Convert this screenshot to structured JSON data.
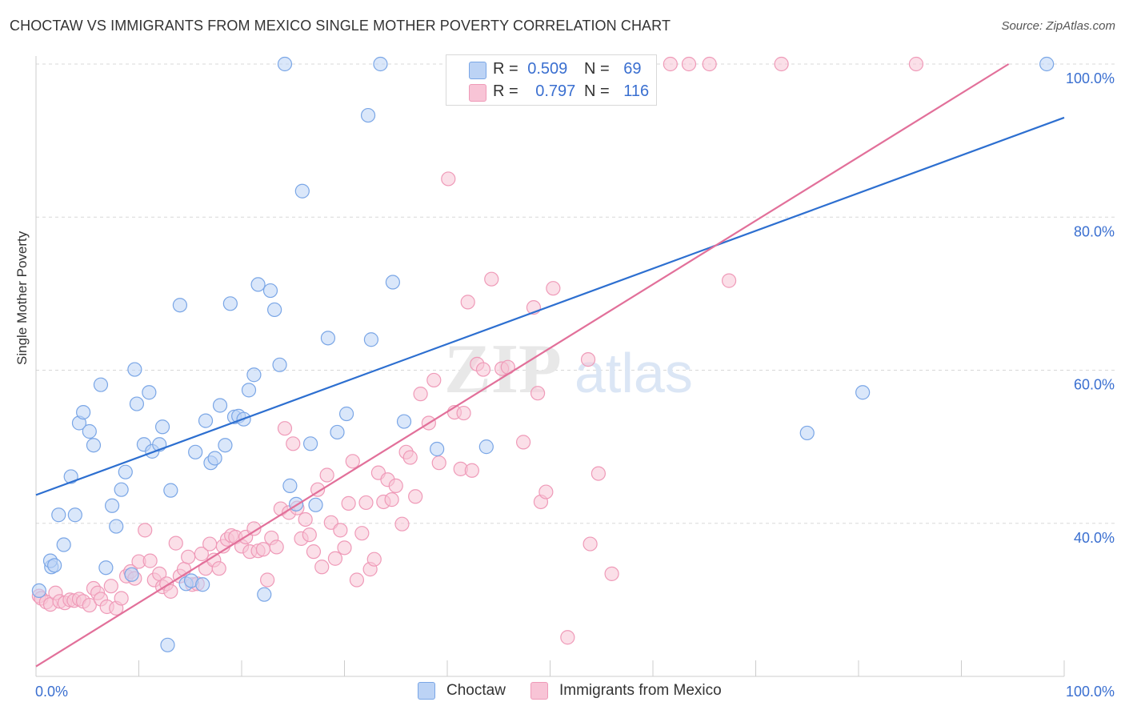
{
  "title": "CHOCTAW VS IMMIGRANTS FROM MEXICO SINGLE MOTHER POVERTY CORRELATION CHART",
  "source": "Source: ZipAtlas.com",
  "watermark": {
    "zip": "ZIP",
    "atlas": "atlas"
  },
  "legend": {
    "r_label": "R =",
    "n_label": "N =",
    "series": [
      {
        "name": "Choctaw",
        "r": "0.509",
        "n": "69",
        "color": "#7aa6e6",
        "fill": "#bcd3f5",
        "line": "#2d6fd0"
      },
      {
        "name": "Immigrants from Mexico",
        "r": "0.797",
        "n": "116",
        "color": "#ef9ab8",
        "fill": "#f8c4d6",
        "line": "#e2709a"
      }
    ]
  },
  "chart_data": {
    "type": "scatter",
    "title": "CHOCTAW VS IMMIGRANTS FROM MEXICO SINGLE MOTHER POVERTY CORRELATION CHART",
    "xlabel": "",
    "ylabel": "Single Mother Poverty",
    "xlim": [
      0,
      100
    ],
    "ylim": [
      20,
      100
    ],
    "x_tick_labels": [
      "0.0%",
      "100.0%"
    ],
    "y_ticks": [
      40,
      60,
      80,
      100
    ],
    "y_tick_labels": [
      "40.0%",
      "60.0%",
      "80.0%",
      "100.0%"
    ],
    "grid": "horizontal dashed",
    "legend_position": "top-center",
    "series": [
      {
        "name": "Choctaw",
        "trendline": {
          "x0": 0,
          "y0": 43.7,
          "x1": 100,
          "y1": 93.0
        },
        "points": [
          [
            0.3,
            31.2
          ],
          [
            1.5,
            34.3
          ],
          [
            1.4,
            35.1
          ],
          [
            1.8,
            34.5
          ],
          [
            2.2,
            41.1
          ],
          [
            2.7,
            37.2
          ],
          [
            3.4,
            46.1
          ],
          [
            3.8,
            41.1
          ],
          [
            4.2,
            53.1
          ],
          [
            4.6,
            54.5
          ],
          [
            5.2,
            52.0
          ],
          [
            5.6,
            50.2
          ],
          [
            6.3,
            58.1
          ],
          [
            6.8,
            34.2
          ],
          [
            7.4,
            42.3
          ],
          [
            7.8,
            39.6
          ],
          [
            8.3,
            44.4
          ],
          [
            8.7,
            46.7
          ],
          [
            9.3,
            33.3
          ],
          [
            9.6,
            60.1
          ],
          [
            9.8,
            55.6
          ],
          [
            10.5,
            50.3
          ],
          [
            11.0,
            57.1
          ],
          [
            11.3,
            49.4
          ],
          [
            12.0,
            50.3
          ],
          [
            12.3,
            52.6
          ],
          [
            12.8,
            24.1
          ],
          [
            13.1,
            44.3
          ],
          [
            14.0,
            68.5
          ],
          [
            14.6,
            32.1
          ],
          [
            15.1,
            32.5
          ],
          [
            15.5,
            49.3
          ],
          [
            16.2,
            32.0
          ],
          [
            16.5,
            53.4
          ],
          [
            17.0,
            47.9
          ],
          [
            17.4,
            48.5
          ],
          [
            17.9,
            55.4
          ],
          [
            18.4,
            50.2
          ],
          [
            18.9,
            68.7
          ],
          [
            19.3,
            53.9
          ],
          [
            19.7,
            54.0
          ],
          [
            20.2,
            53.6
          ],
          [
            20.7,
            57.4
          ],
          [
            21.2,
            59.4
          ],
          [
            21.6,
            71.2
          ],
          [
            22.2,
            30.7
          ],
          [
            22.8,
            70.4
          ],
          [
            23.2,
            67.9
          ],
          [
            23.7,
            60.7
          ],
          [
            24.2,
            100
          ],
          [
            24.7,
            44.9
          ],
          [
            25.3,
            42.5
          ],
          [
            25.9,
            83.4
          ],
          [
            26.7,
            50.4
          ],
          [
            27.2,
            42.4
          ],
          [
            28.4,
            64.2
          ],
          [
            29.3,
            51.9
          ],
          [
            30.2,
            54.3
          ],
          [
            32.3,
            93.3
          ],
          [
            32.6,
            64.0
          ],
          [
            33.5,
            100
          ],
          [
            34.7,
            71.5
          ],
          [
            35.8,
            53.3
          ],
          [
            39.0,
            49.7
          ],
          [
            43.8,
            50.0
          ],
          [
            46.1,
            100
          ],
          [
            75.0,
            51.8
          ],
          [
            80.4,
            57.1
          ],
          [
            98.3,
            100
          ]
        ]
      },
      {
        "name": "Immigrants from Mexico",
        "trendline": {
          "x0": 0,
          "y0": 21.3,
          "x1": 94.6,
          "y1": 100
        },
        "points": [
          [
            0.3,
            30.5
          ],
          [
            0.5,
            30.2
          ],
          [
            1.0,
            29.7
          ],
          [
            1.4,
            29.4
          ],
          [
            1.9,
            30.9
          ],
          [
            2.3,
            29.8
          ],
          [
            2.8,
            29.6
          ],
          [
            3.3,
            30.0
          ],
          [
            3.7,
            29.9
          ],
          [
            4.2,
            30.1
          ],
          [
            4.6,
            29.8
          ],
          [
            5.2,
            29.3
          ],
          [
            5.6,
            31.5
          ],
          [
            6.0,
            30.9
          ],
          [
            6.3,
            30.1
          ],
          [
            6.9,
            29.1
          ],
          [
            7.3,
            31.8
          ],
          [
            7.8,
            28.9
          ],
          [
            8.3,
            30.2
          ],
          [
            8.8,
            33.1
          ],
          [
            9.2,
            33.7
          ],
          [
            9.6,
            32.8
          ],
          [
            10.0,
            35.0
          ],
          [
            10.6,
            39.1
          ],
          [
            11.1,
            35.1
          ],
          [
            11.5,
            32.6
          ],
          [
            12.0,
            33.4
          ],
          [
            12.3,
            31.7
          ],
          [
            12.7,
            32.1
          ],
          [
            13.1,
            31.1
          ],
          [
            13.6,
            37.4
          ],
          [
            14.0,
            33.1
          ],
          [
            14.4,
            34.0
          ],
          [
            14.8,
            35.6
          ],
          [
            15.2,
            32.0
          ],
          [
            15.7,
            32.1
          ],
          [
            16.1,
            36.0
          ],
          [
            16.5,
            34.1
          ],
          [
            16.9,
            37.3
          ],
          [
            17.3,
            35.2
          ],
          [
            17.8,
            34.1
          ],
          [
            18.2,
            37.0
          ],
          [
            18.6,
            37.9
          ],
          [
            19.0,
            38.4
          ],
          [
            19.4,
            38.2
          ],
          [
            20.0,
            37.0
          ],
          [
            20.4,
            38.2
          ],
          [
            20.8,
            36.3
          ],
          [
            21.2,
            39.3
          ],
          [
            21.6,
            36.4
          ],
          [
            22.1,
            36.6
          ],
          [
            22.5,
            32.6
          ],
          [
            22.9,
            38.1
          ],
          [
            23.4,
            36.9
          ],
          [
            23.8,
            41.9
          ],
          [
            24.2,
            52.4
          ],
          [
            24.6,
            41.4
          ],
          [
            25.0,
            50.4
          ],
          [
            25.4,
            42.0
          ],
          [
            25.8,
            38.0
          ],
          [
            26.2,
            40.5
          ],
          [
            26.6,
            38.5
          ],
          [
            27.0,
            36.3
          ],
          [
            27.4,
            44.4
          ],
          [
            27.8,
            34.3
          ],
          [
            28.3,
            46.3
          ],
          [
            28.7,
            40.1
          ],
          [
            29.1,
            35.4
          ],
          [
            29.6,
            39.1
          ],
          [
            30.0,
            36.8
          ],
          [
            30.4,
            42.6
          ],
          [
            30.8,
            48.1
          ],
          [
            31.2,
            32.6
          ],
          [
            31.7,
            38.7
          ],
          [
            32.1,
            42.7
          ],
          [
            32.5,
            34.0
          ],
          [
            32.9,
            35.3
          ],
          [
            33.3,
            46.6
          ],
          [
            33.8,
            42.8
          ],
          [
            34.2,
            45.7
          ],
          [
            34.6,
            43.1
          ],
          [
            35.0,
            44.9
          ],
          [
            35.6,
            39.9
          ],
          [
            36.0,
            49.3
          ],
          [
            36.4,
            48.6
          ],
          [
            36.9,
            43.5
          ],
          [
            37.4,
            56.9
          ],
          [
            38.2,
            53.1
          ],
          [
            38.7,
            58.7
          ],
          [
            39.2,
            47.9
          ],
          [
            40.1,
            85.0
          ],
          [
            40.7,
            54.5
          ],
          [
            41.3,
            47.1
          ],
          [
            41.6,
            54.4
          ],
          [
            42.0,
            68.9
          ],
          [
            42.4,
            46.9
          ],
          [
            42.9,
            60.8
          ],
          [
            43.5,
            60.1
          ],
          [
            44.3,
            71.9
          ],
          [
            45.3,
            60.2
          ],
          [
            45.9,
            60.4
          ],
          [
            47.4,
            50.6
          ],
          [
            48.4,
            68.2
          ],
          [
            48.8,
            57.0
          ],
          [
            49.1,
            42.8
          ],
          [
            49.6,
            44.1
          ],
          [
            50.3,
            70.7
          ],
          [
            51.7,
            25.1
          ],
          [
            53.7,
            61.4
          ],
          [
            53.9,
            37.3
          ],
          [
            54.7,
            46.5
          ],
          [
            56.0,
            33.4
          ],
          [
            61.7,
            100
          ],
          [
            63.5,
            100
          ],
          [
            65.5,
            100
          ],
          [
            67.4,
            71.7
          ],
          [
            72.5,
            100
          ],
          [
            85.6,
            100
          ]
        ]
      }
    ]
  }
}
